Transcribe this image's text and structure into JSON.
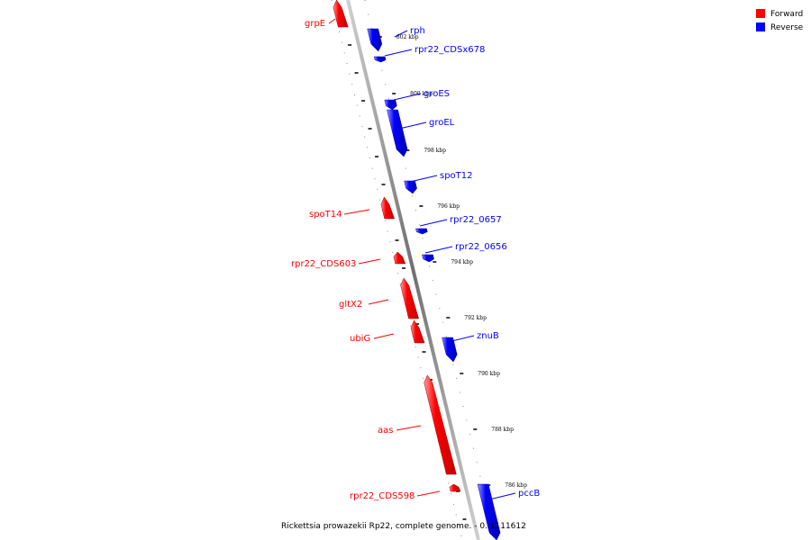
{
  "legend": {
    "forward_label": "Forward",
    "reverse_label": "Reverse",
    "forward_color": "#ff0000",
    "reverse_color": "#0000ff"
  },
  "caption": "Rickettsia prowazekii Rp22, complete genome. - 0..1111612",
  "ticks": [
    "802 kbp",
    "800 kbp",
    "798 kbp",
    "796 kbp",
    "794 kbp",
    "792 kbp",
    "790 kbp",
    "788 kbp",
    "786 kbp"
  ],
  "genes": [
    {
      "name": "grpE",
      "strand": "forward"
    },
    {
      "name": "rph",
      "strand": "reverse"
    },
    {
      "name": "rpr22_CDSx678",
      "strand": "reverse"
    },
    {
      "name": "groES",
      "strand": "reverse"
    },
    {
      "name": "groEL",
      "strand": "reverse"
    },
    {
      "name": "spoT12",
      "strand": "reverse"
    },
    {
      "name": "spoT14",
      "strand": "forward"
    },
    {
      "name": "rpr22_0657",
      "strand": "reverse"
    },
    {
      "name": "rpr22_0656",
      "strand": "reverse"
    },
    {
      "name": "rpr22_CDS603",
      "strand": "forward"
    },
    {
      "name": "gltX2",
      "strand": "forward"
    },
    {
      "name": "ubiG",
      "strand": "forward"
    },
    {
      "name": "znuB",
      "strand": "reverse"
    },
    {
      "name": "aas",
      "strand": "forward"
    },
    {
      "name": "rpr22_CDS598",
      "strand": "forward"
    },
    {
      "name": "pccB",
      "strand": "reverse"
    }
  ]
}
